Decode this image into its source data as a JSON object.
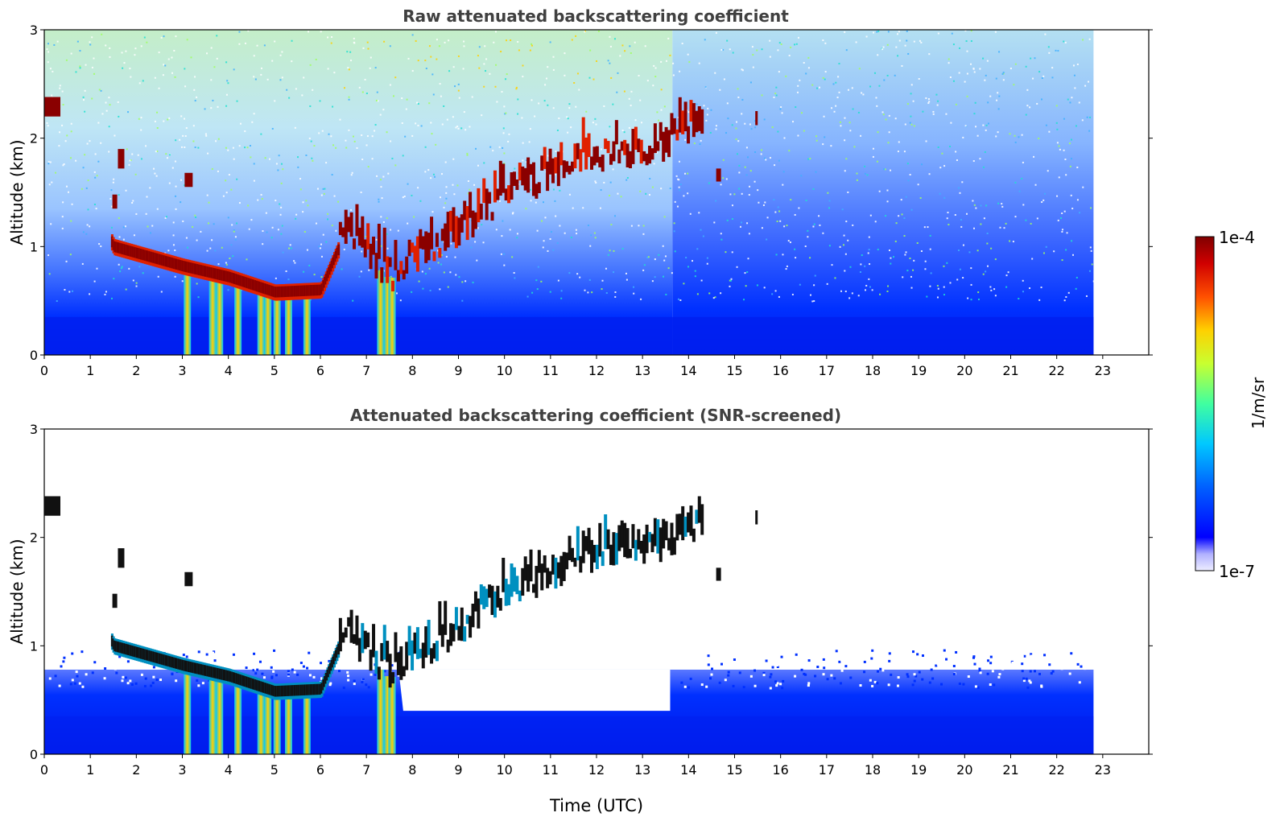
{
  "chart_data": [
    {
      "type": "heatmap",
      "title": "Raw attenuated backscattering coefficient",
      "ylabel": "Altitude (km)",
      "xlabel": "",
      "xlim": [
        0,
        24
      ],
      "ylim": [
        0,
        3
      ],
      "x_ticks": [
        "0",
        "1",
        "2",
        "3",
        "4",
        "5",
        "6",
        "7",
        "8",
        "9",
        "10",
        "11",
        "12",
        "13",
        "14",
        "15",
        "16",
        "17",
        "18",
        "19",
        "20",
        "21",
        "22",
        "23"
      ],
      "y_ticks": [
        "0",
        "1",
        "2",
        "3"
      ],
      "data_end_time": 22.8,
      "color_scale": "log",
      "approx_features": {
        "boundary_layer_top_km": 0.5,
        "cloud_layer_trace": [
          {
            "time": 0.0,
            "alt": 2.3
          },
          {
            "time": 1.5,
            "alt": 1.0
          },
          {
            "time": 3.0,
            "alt": 0.82
          },
          {
            "time": 4.0,
            "alt": 0.72
          },
          {
            "time": 5.0,
            "alt": 0.58
          },
          {
            "time": 6.0,
            "alt": 0.6
          },
          {
            "time": 6.5,
            "alt": 1.1
          },
          {
            "time": 7.5,
            "alt": 0.7
          },
          {
            "time": 9.0,
            "alt": 1.1
          },
          {
            "time": 10.0,
            "alt": 1.45
          },
          {
            "time": 12.0,
            "alt": 1.8
          },
          {
            "time": 13.5,
            "alt": 1.9
          },
          {
            "time": 14.3,
            "alt": 2.1
          }
        ]
      }
    },
    {
      "type": "heatmap",
      "title": "Attenuated backscattering coefficient (SNR-screened)",
      "ylabel": "Altitude (km)",
      "xlabel": "Time (UTC)",
      "xlim": [
        0,
        24
      ],
      "ylim": [
        0,
        3
      ],
      "x_ticks": [
        "0",
        "1",
        "2",
        "3",
        "4",
        "5",
        "6",
        "7",
        "8",
        "9",
        "10",
        "11",
        "12",
        "13",
        "14",
        "15",
        "16",
        "17",
        "18",
        "19",
        "20",
        "21",
        "22",
        "23"
      ],
      "y_ticks": [
        "0",
        "1",
        "2",
        "3"
      ],
      "data_end_time": 22.8,
      "color_scale": "log"
    }
  ],
  "colorbar": {
    "label": "1/m/sr",
    "max_label": "1e-4",
    "min_label": "1e-7",
    "colors": [
      "#eeeeff",
      "#c8c8ff",
      "#8080ff",
      "#0000ff",
      "#0050ff",
      "#00a0ff",
      "#00e0e0",
      "#40ff80",
      "#c0ff40",
      "#ffe000",
      "#ff8000",
      "#ff2000",
      "#c00000",
      "#800000"
    ]
  }
}
